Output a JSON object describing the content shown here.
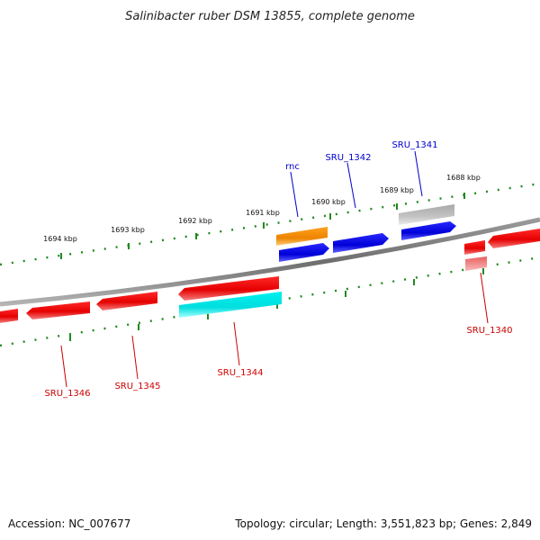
{
  "title": "Salinibacter ruber DSM 13855, complete genome",
  "footer": {
    "accession": "Accession: NC_007677",
    "summary": "Topology: circular; Length: 3,551,823 bp; Genes: 2,849"
  },
  "colors": {
    "backbone": "#888888",
    "tick": "#1f8a1f",
    "forward_label": "#0000cc",
    "reverse_label": "#cc0000",
    "gene_red": "#ff0000",
    "gene_pink": "#f28080",
    "gene_cyan": "#00e8e8",
    "gene_blue": "#0000e0",
    "gene_orange": "#f28c00",
    "gene_gray": "#b4b4b4"
  },
  "position_labels": [
    "1694 kbp",
    "1693 kbp",
    "1692 kbp",
    "1691 kbp",
    "1690 kbp",
    "1689 kbp",
    "1688 kbp"
  ],
  "gene_labels": {
    "rnc": "rnc",
    "sru_1342": "SRU_1342",
    "sru_1341": "SRU_1341",
    "sru_1340": "SRU_1340",
    "sru_1344": "SRU_1344",
    "sru_1345": "SRU_1345",
    "sru_1346": "SRU_1346"
  }
}
